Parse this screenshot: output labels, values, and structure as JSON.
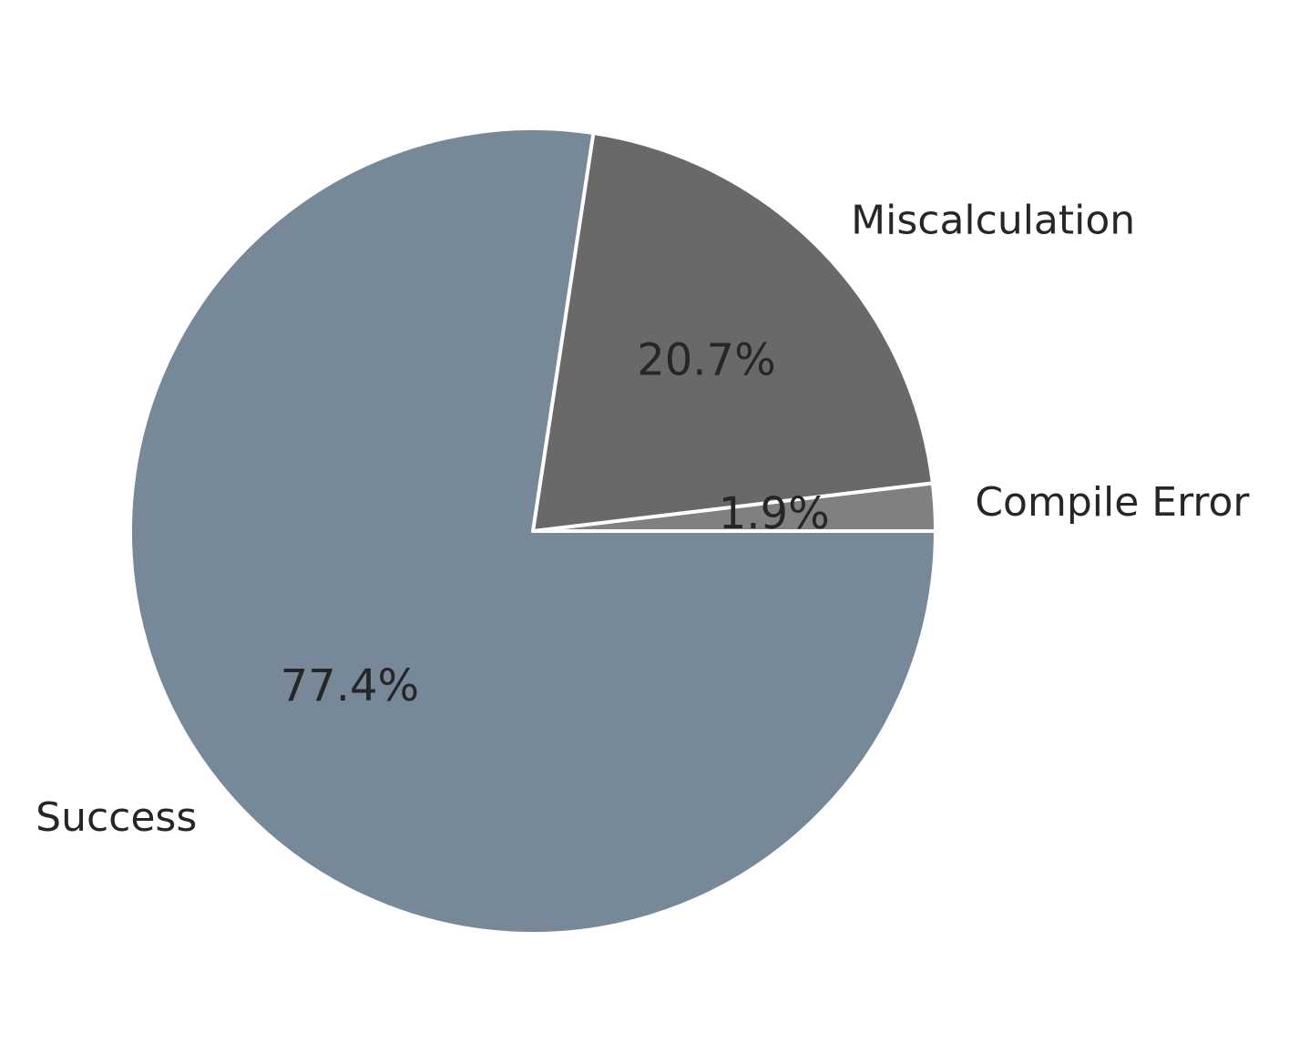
{
  "chart_data": {
    "type": "pie",
    "categories": [
      "Compile Error",
      "Miscalculation",
      "Success"
    ],
    "values": [
      1.9,
      20.7,
      77.4
    ],
    "value_labels": [
      "1.9%",
      "20.7%",
      "77.4%"
    ],
    "colors": [
      "#808080",
      "#696969",
      "#778899"
    ],
    "start_angle_deg": 0,
    "direction": "counterclockwise",
    "legend": "none",
    "title": ""
  }
}
